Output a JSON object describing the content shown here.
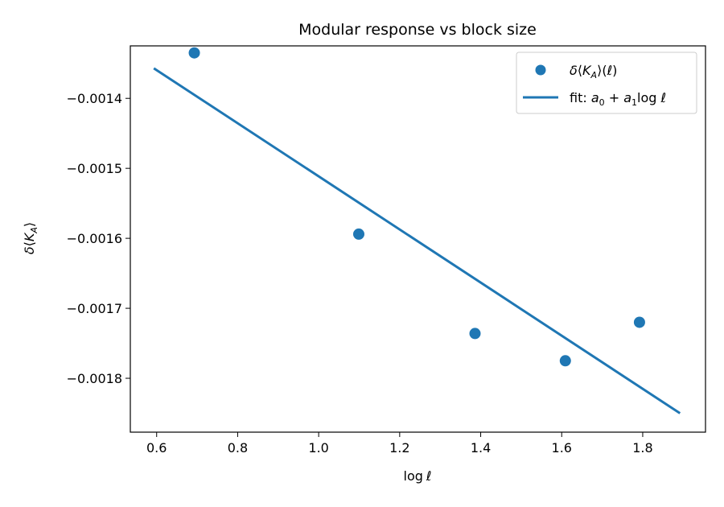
{
  "chart_data": {
    "type": "scatter",
    "title": "Modular response vs block size",
    "xlabel": "log ℓ",
    "ylabel": "δ⟨K_A⟩",
    "xlim": [
      0.535,
      1.955
    ],
    "ylim": [
      -0.001877,
      -0.001325
    ],
    "xticks": [
      0.6,
      0.8,
      1.0,
      1.2,
      1.4,
      1.6,
      1.8
    ],
    "xtick_labels": [
      "0.6",
      "0.8",
      "1.0",
      "1.2",
      "1.4",
      "1.6",
      "1.8"
    ],
    "yticks": [
      -0.0014,
      -0.0015,
      -0.0016,
      -0.0017,
      -0.0018
    ],
    "ytick_labels": [
      "−0.0014",
      "−0.0015",
      "−0.0016",
      "−0.0017",
      "−0.0018"
    ],
    "grid": false,
    "legend_position": "top-right",
    "color": "#1f77b4",
    "series": [
      {
        "name": "δ⟨K_A⟩(ℓ)",
        "kind": "scatter",
        "x": [
          0.693,
          1.099,
          1.386,
          1.609,
          1.792
        ],
        "y": [
          -0.001335,
          -0.001594,
          -0.001736,
          -0.001775,
          -0.00172
        ]
      },
      {
        "name": "fit: a₀ + a₁ log ℓ",
        "kind": "line",
        "x": [
          0.593,
          1.892
        ],
        "y": [
          -0.001357,
          -0.00185
        ]
      }
    ]
  }
}
